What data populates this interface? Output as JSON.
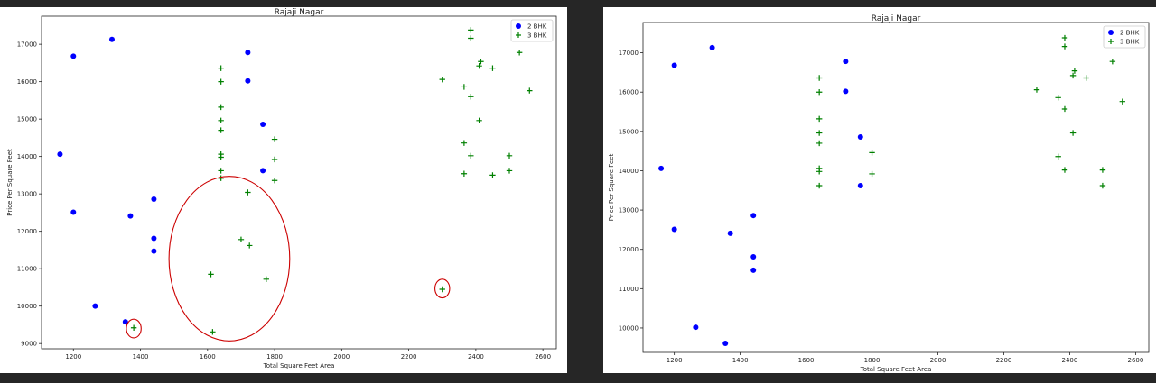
{
  "chart_data": [
    {
      "type": "scatter",
      "title": "Rajaji Nagar",
      "xlabel": "Total Square Feet Area",
      "ylabel": "Price Per Square Feet",
      "xlim": [
        1105,
        2640
      ],
      "ylim": [
        8860,
        17750
      ],
      "xticks": [
        1200,
        1400,
        1600,
        1800,
        2000,
        2200,
        2400,
        2600
      ],
      "yticks": [
        9000,
        10000,
        11000,
        12000,
        13000,
        14000,
        15000,
        16000,
        17000
      ],
      "legend_position": "top-right",
      "grid": false,
      "series": [
        {
          "name": "2 BHK",
          "marker": "circle",
          "color": "#0000ff",
          "points": [
            [
              1160,
              14060
            ],
            [
              1200,
              16680
            ],
            [
              1200,
              12510
            ],
            [
              1265,
              10000
            ],
            [
              1315,
              17130
            ],
            [
              1355,
              9580
            ],
            [
              1370,
              12410
            ],
            [
              1440,
              12860
            ],
            [
              1440,
              11810
            ],
            [
              1440,
              11470
            ],
            [
              1720,
              16780
            ],
            [
              1720,
              16020
            ],
            [
              1765,
              14860
            ],
            [
              1765,
              13620
            ]
          ]
        },
        {
          "name": "3 BHK",
          "marker": "plus",
          "color": "#008000",
          "points": [
            [
              1380,
              9420
            ],
            [
              1610,
              10850
            ],
            [
              1615,
              9310
            ],
            [
              1640,
              16360
            ],
            [
              1640,
              16000
            ],
            [
              1640,
              15320
            ],
            [
              1640,
              14960
            ],
            [
              1640,
              14700
            ],
            [
              1640,
              14060
            ],
            [
              1640,
              13980
            ],
            [
              1640,
              13620
            ],
            [
              1640,
              13420
            ],
            [
              1700,
              11780
            ],
            [
              1720,
              13040
            ],
            [
              1725,
              11620
            ],
            [
              1775,
              10720
            ],
            [
              1800,
              14460
            ],
            [
              1800,
              13920
            ],
            [
              1800,
              13360
            ],
            [
              2300,
              16060
            ],
            [
              2300,
              10450
            ],
            [
              2365,
              15860
            ],
            [
              2365,
              14360
            ],
            [
              2365,
              13540
            ],
            [
              2385,
              17380
            ],
            [
              2385,
              17160
            ],
            [
              2385,
              15600
            ],
            [
              2385,
              14020
            ],
            [
              2410,
              16420
            ],
            [
              2410,
              14960
            ],
            [
              2415,
              16540
            ],
            [
              2450,
              16360
            ],
            [
              2450,
              13500
            ],
            [
              2500,
              14020
            ],
            [
              2500,
              13620
            ],
            [
              2530,
              16780
            ],
            [
              2560,
              15760
            ]
          ]
        }
      ],
      "annotations": [
        {
          "shape": "ellipse",
          "color": "#cc0000",
          "center": [
            1380,
            9400
          ],
          "radius_data": [
            22,
            250
          ]
        },
        {
          "shape": "ellipse",
          "color": "#cc0000",
          "center": [
            1665,
            11270
          ],
          "radius_data": [
            180,
            2200
          ]
        },
        {
          "shape": "ellipse",
          "color": "#cc0000",
          "center": [
            2300,
            10470
          ],
          "radius_data": [
            22,
            250
          ]
        }
      ]
    },
    {
      "type": "scatter",
      "title": "Rajaji Nagar",
      "xlabel": "Total Square Feet Area",
      "ylabel": "Price Per Square Feet",
      "xlim": [
        1105,
        2640
      ],
      "ylim": [
        9380,
        17770
      ],
      "xticks": [
        1200,
        1400,
        1600,
        1800,
        2000,
        2200,
        2400,
        2600
      ],
      "yticks": [
        10000,
        11000,
        12000,
        13000,
        14000,
        15000,
        16000,
        17000
      ],
      "legend_position": "top-right",
      "grid": false,
      "series": [
        {
          "name": "2 BHK",
          "marker": "circle",
          "color": "#0000ff",
          "points": [
            [
              1160,
              14060
            ],
            [
              1200,
              16680
            ],
            [
              1200,
              12510
            ],
            [
              1265,
              10020
            ],
            [
              1315,
              17130
            ],
            [
              1355,
              9610
            ],
            [
              1370,
              12410
            ],
            [
              1440,
              12860
            ],
            [
              1440,
              11810
            ],
            [
              1440,
              11470
            ],
            [
              1720,
              16780
            ],
            [
              1720,
              16020
            ],
            [
              1765,
              14860
            ],
            [
              1765,
              13620
            ]
          ]
        },
        {
          "name": "3 BHK",
          "marker": "plus",
          "color": "#008000",
          "points": [
            [
              1640,
              16360
            ],
            [
              1640,
              16000
            ],
            [
              1640,
              15320
            ],
            [
              1640,
              14960
            ],
            [
              1640,
              14700
            ],
            [
              1640,
              14060
            ],
            [
              1640,
              13980
            ],
            [
              1640,
              13620
            ],
            [
              1800,
              14460
            ],
            [
              1800,
              13920
            ],
            [
              2300,
              16060
            ],
            [
              2365,
              15860
            ],
            [
              2365,
              14360
            ],
            [
              2385,
              17380
            ],
            [
              2385,
              17160
            ],
            [
              2385,
              15570
            ],
            [
              2385,
              14020
            ],
            [
              2410,
              16420
            ],
            [
              2410,
              14960
            ],
            [
              2415,
              16540
            ],
            [
              2450,
              16360
            ],
            [
              2500,
              14020
            ],
            [
              2500,
              13620
            ],
            [
              2530,
              16780
            ],
            [
              2560,
              15760
            ]
          ]
        }
      ],
      "annotations": []
    }
  ]
}
